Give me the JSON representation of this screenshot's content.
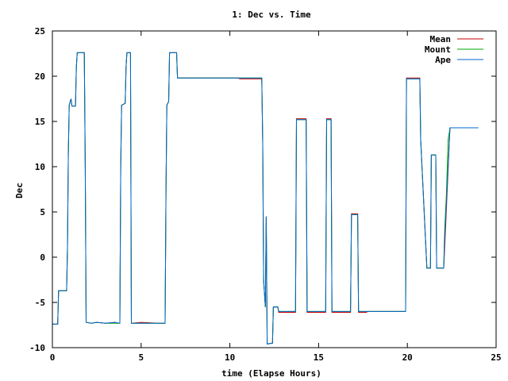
{
  "chart_data": {
    "type": "line",
    "title": "1: Dec vs. Time",
    "xlabel": "time (Elapse Hours)",
    "ylabel": "Dec",
    "xlim": [
      0,
      25
    ],
    "ylim": [
      -10,
      25
    ],
    "xticks": [
      0,
      5,
      10,
      15,
      20,
      25
    ],
    "yticks": [
      -10,
      -5,
      0,
      5,
      10,
      15,
      20,
      25
    ],
    "grid": false,
    "legend_position": "top-right",
    "series": [
      {
        "name": "Mean",
        "color": "#cc0000",
        "points": [
          [
            0.0,
            -7.4
          ],
          [
            0.3,
            -7.4
          ],
          [
            0.35,
            -3.7
          ],
          [
            0.8,
            -3.7
          ],
          [
            0.85,
            1.0
          ],
          [
            0.9,
            11.5
          ],
          [
            0.95,
            16.8
          ],
          [
            1.05,
            17.5
          ],
          [
            1.1,
            16.7
          ],
          [
            1.3,
            16.7
          ],
          [
            1.35,
            21.0
          ],
          [
            1.4,
            22.6
          ],
          [
            1.8,
            22.6
          ],
          [
            1.85,
            10.0
          ],
          [
            1.9,
            -7.2
          ],
          [
            2.2,
            -7.3
          ],
          [
            2.5,
            -7.2
          ],
          [
            3.0,
            -7.3
          ],
          [
            3.5,
            -7.2
          ],
          [
            3.8,
            -7.3
          ],
          [
            3.85,
            10.0
          ],
          [
            3.9,
            16.8
          ],
          [
            4.1,
            17.0
          ],
          [
            4.15,
            21.0
          ],
          [
            4.2,
            22.6
          ],
          [
            4.4,
            22.6
          ],
          [
            4.45,
            -7.3
          ],
          [
            5.0,
            -7.2
          ],
          [
            6.0,
            -7.3
          ],
          [
            6.35,
            -7.3
          ],
          [
            6.4,
            7.0
          ],
          [
            6.45,
            16.8
          ],
          [
            6.55,
            17.2
          ],
          [
            6.6,
            22.6
          ],
          [
            7.0,
            22.6
          ],
          [
            7.05,
            19.8
          ],
          [
            10.5,
            19.8
          ],
          [
            10.55,
            19.7
          ],
          [
            11.8,
            19.7
          ],
          [
            11.85,
            12.5
          ],
          [
            11.9,
            -2.5
          ],
          [
            12.0,
            -5.5
          ],
          [
            12.05,
            4.5
          ],
          [
            12.1,
            -9.6
          ],
          [
            12.4,
            -9.5
          ],
          [
            12.45,
            -5.5
          ],
          [
            12.7,
            -5.5
          ],
          [
            12.75,
            -6.1
          ],
          [
            13.7,
            -6.1
          ],
          [
            13.75,
            15.3
          ],
          [
            14.3,
            15.3
          ],
          [
            14.35,
            -6.1
          ],
          [
            15.4,
            -6.1
          ],
          [
            15.45,
            15.3
          ],
          [
            15.7,
            15.3
          ],
          [
            15.75,
            -6.1
          ],
          [
            16.8,
            -6.1
          ],
          [
            16.85,
            4.8
          ],
          [
            17.2,
            4.8
          ],
          [
            17.25,
            -6.1
          ],
          [
            17.7,
            -6.1
          ],
          [
            17.75,
            -6.0
          ],
          [
            19.9,
            -6.0
          ],
          [
            19.95,
            19.8
          ],
          [
            20.7,
            19.8
          ],
          [
            20.75,
            13.0
          ],
          [
            21.1,
            -1.2
          ],
          [
            21.3,
            -1.2
          ],
          [
            21.35,
            11.3
          ],
          [
            21.6,
            11.3
          ],
          [
            21.65,
            -1.2
          ],
          [
            22.05,
            -1.2
          ],
          [
            22.1,
            1.0
          ],
          [
            22.4,
            14.3
          ],
          [
            24.0,
            14.3
          ]
        ]
      },
      {
        "name": "Mount",
        "color": "#00aa00",
        "points": [
          [
            0.0,
            -7.4
          ],
          [
            0.3,
            -7.4
          ],
          [
            0.35,
            -3.7
          ],
          [
            0.8,
            -3.7
          ],
          [
            0.85,
            1.0
          ],
          [
            0.9,
            11.5
          ],
          [
            0.95,
            16.8
          ],
          [
            1.05,
            17.5
          ],
          [
            1.1,
            16.7
          ],
          [
            1.3,
            16.7
          ],
          [
            1.35,
            21.0
          ],
          [
            1.4,
            22.6
          ],
          [
            1.8,
            22.6
          ],
          [
            1.85,
            10.0
          ],
          [
            1.9,
            -7.2
          ],
          [
            2.2,
            -7.3
          ],
          [
            2.5,
            -7.2
          ],
          [
            3.0,
            -7.3
          ],
          [
            3.5,
            -7.3
          ],
          [
            3.8,
            -7.3
          ],
          [
            3.85,
            10.0
          ],
          [
            3.9,
            16.8
          ],
          [
            4.1,
            17.0
          ],
          [
            4.15,
            21.0
          ],
          [
            4.2,
            22.6
          ],
          [
            4.4,
            22.6
          ],
          [
            4.45,
            -7.3
          ],
          [
            5.0,
            -7.3
          ],
          [
            6.0,
            -7.3
          ],
          [
            6.35,
            -7.3
          ],
          [
            6.4,
            7.0
          ],
          [
            6.45,
            16.8
          ],
          [
            6.55,
            17.2
          ],
          [
            6.6,
            22.6
          ],
          [
            7.0,
            22.6
          ],
          [
            7.05,
            19.8
          ],
          [
            10.5,
            19.8
          ],
          [
            11.8,
            19.8
          ],
          [
            11.85,
            12.5
          ],
          [
            11.9,
            -2.5
          ],
          [
            12.0,
            -5.5
          ],
          [
            12.05,
            4.5
          ],
          [
            12.1,
            -9.6
          ],
          [
            12.4,
            -9.5
          ],
          [
            12.45,
            -5.5
          ],
          [
            12.7,
            -5.5
          ],
          [
            12.75,
            -6.0
          ],
          [
            13.7,
            -6.0
          ],
          [
            13.75,
            15.2
          ],
          [
            14.3,
            15.2
          ],
          [
            14.35,
            -6.0
          ],
          [
            15.4,
            -6.0
          ],
          [
            15.45,
            15.2
          ],
          [
            15.7,
            15.2
          ],
          [
            15.75,
            -6.0
          ],
          [
            16.8,
            -6.0
          ],
          [
            16.85,
            4.7
          ],
          [
            17.2,
            4.7
          ],
          [
            17.25,
            -6.0
          ],
          [
            17.7,
            -6.0
          ],
          [
            19.9,
            -6.0
          ],
          [
            19.95,
            19.7
          ],
          [
            20.7,
            19.7
          ],
          [
            20.75,
            13.0
          ],
          [
            21.1,
            -1.2
          ],
          [
            21.3,
            -1.2
          ],
          [
            21.35,
            11.3
          ],
          [
            21.6,
            11.3
          ],
          [
            21.65,
            -1.2
          ],
          [
            22.05,
            -1.2
          ],
          [
            22.1,
            3.0
          ],
          [
            22.2,
            7.0
          ],
          [
            22.3,
            13.0
          ],
          [
            22.4,
            14.3
          ],
          [
            24.0,
            14.3
          ]
        ]
      },
      {
        "name": "Ape",
        "color": "#0066cc",
        "points": [
          [
            0.0,
            -7.4
          ],
          [
            0.3,
            -7.4
          ],
          [
            0.35,
            -3.7
          ],
          [
            0.8,
            -3.7
          ],
          [
            0.85,
            1.0
          ],
          [
            0.9,
            11.5
          ],
          [
            0.95,
            16.8
          ],
          [
            1.05,
            17.5
          ],
          [
            1.1,
            16.7
          ],
          [
            1.3,
            16.7
          ],
          [
            1.35,
            21.0
          ],
          [
            1.4,
            22.6
          ],
          [
            1.8,
            22.6
          ],
          [
            1.85,
            10.0
          ],
          [
            1.9,
            -7.2
          ],
          [
            2.2,
            -7.3
          ],
          [
            2.5,
            -7.2
          ],
          [
            3.0,
            -7.3
          ],
          [
            3.5,
            -7.2
          ],
          [
            3.8,
            -7.3
          ],
          [
            3.85,
            10.0
          ],
          [
            3.9,
            16.8
          ],
          [
            4.1,
            17.0
          ],
          [
            4.15,
            21.0
          ],
          [
            4.2,
            22.6
          ],
          [
            4.4,
            22.6
          ],
          [
            4.45,
            -7.3
          ],
          [
            5.0,
            -7.3
          ],
          [
            6.0,
            -7.3
          ],
          [
            6.35,
            -7.3
          ],
          [
            6.4,
            7.0
          ],
          [
            6.45,
            16.8
          ],
          [
            6.55,
            17.2
          ],
          [
            6.6,
            22.6
          ],
          [
            7.0,
            22.6
          ],
          [
            7.05,
            19.8
          ],
          [
            10.5,
            19.8
          ],
          [
            11.8,
            19.8
          ],
          [
            11.85,
            12.5
          ],
          [
            11.9,
            -2.5
          ],
          [
            12.0,
            -5.5
          ],
          [
            12.05,
            4.5
          ],
          [
            12.1,
            -9.6
          ],
          [
            12.4,
            -9.5
          ],
          [
            12.45,
            -5.5
          ],
          [
            12.7,
            -5.5
          ],
          [
            12.75,
            -6.0
          ],
          [
            13.7,
            -6.0
          ],
          [
            13.75,
            15.2
          ],
          [
            14.3,
            15.2
          ],
          [
            14.35,
            -6.0
          ],
          [
            15.4,
            -6.0
          ],
          [
            15.45,
            15.2
          ],
          [
            15.7,
            15.2
          ],
          [
            15.75,
            -6.0
          ],
          [
            16.8,
            -6.0
          ],
          [
            16.85,
            4.7
          ],
          [
            17.2,
            4.7
          ],
          [
            17.25,
            -6.0
          ],
          [
            17.7,
            -6.0
          ],
          [
            19.9,
            -6.0
          ],
          [
            19.95,
            19.7
          ],
          [
            20.7,
            19.7
          ],
          [
            20.75,
            13.0
          ],
          [
            21.1,
            -1.2
          ],
          [
            21.3,
            -1.2
          ],
          [
            21.35,
            11.3
          ],
          [
            21.6,
            11.3
          ],
          [
            21.65,
            -1.2
          ],
          [
            22.05,
            -1.2
          ],
          [
            22.1,
            2.0
          ],
          [
            22.4,
            14.3
          ],
          [
            24.0,
            14.3
          ]
        ]
      }
    ]
  }
}
